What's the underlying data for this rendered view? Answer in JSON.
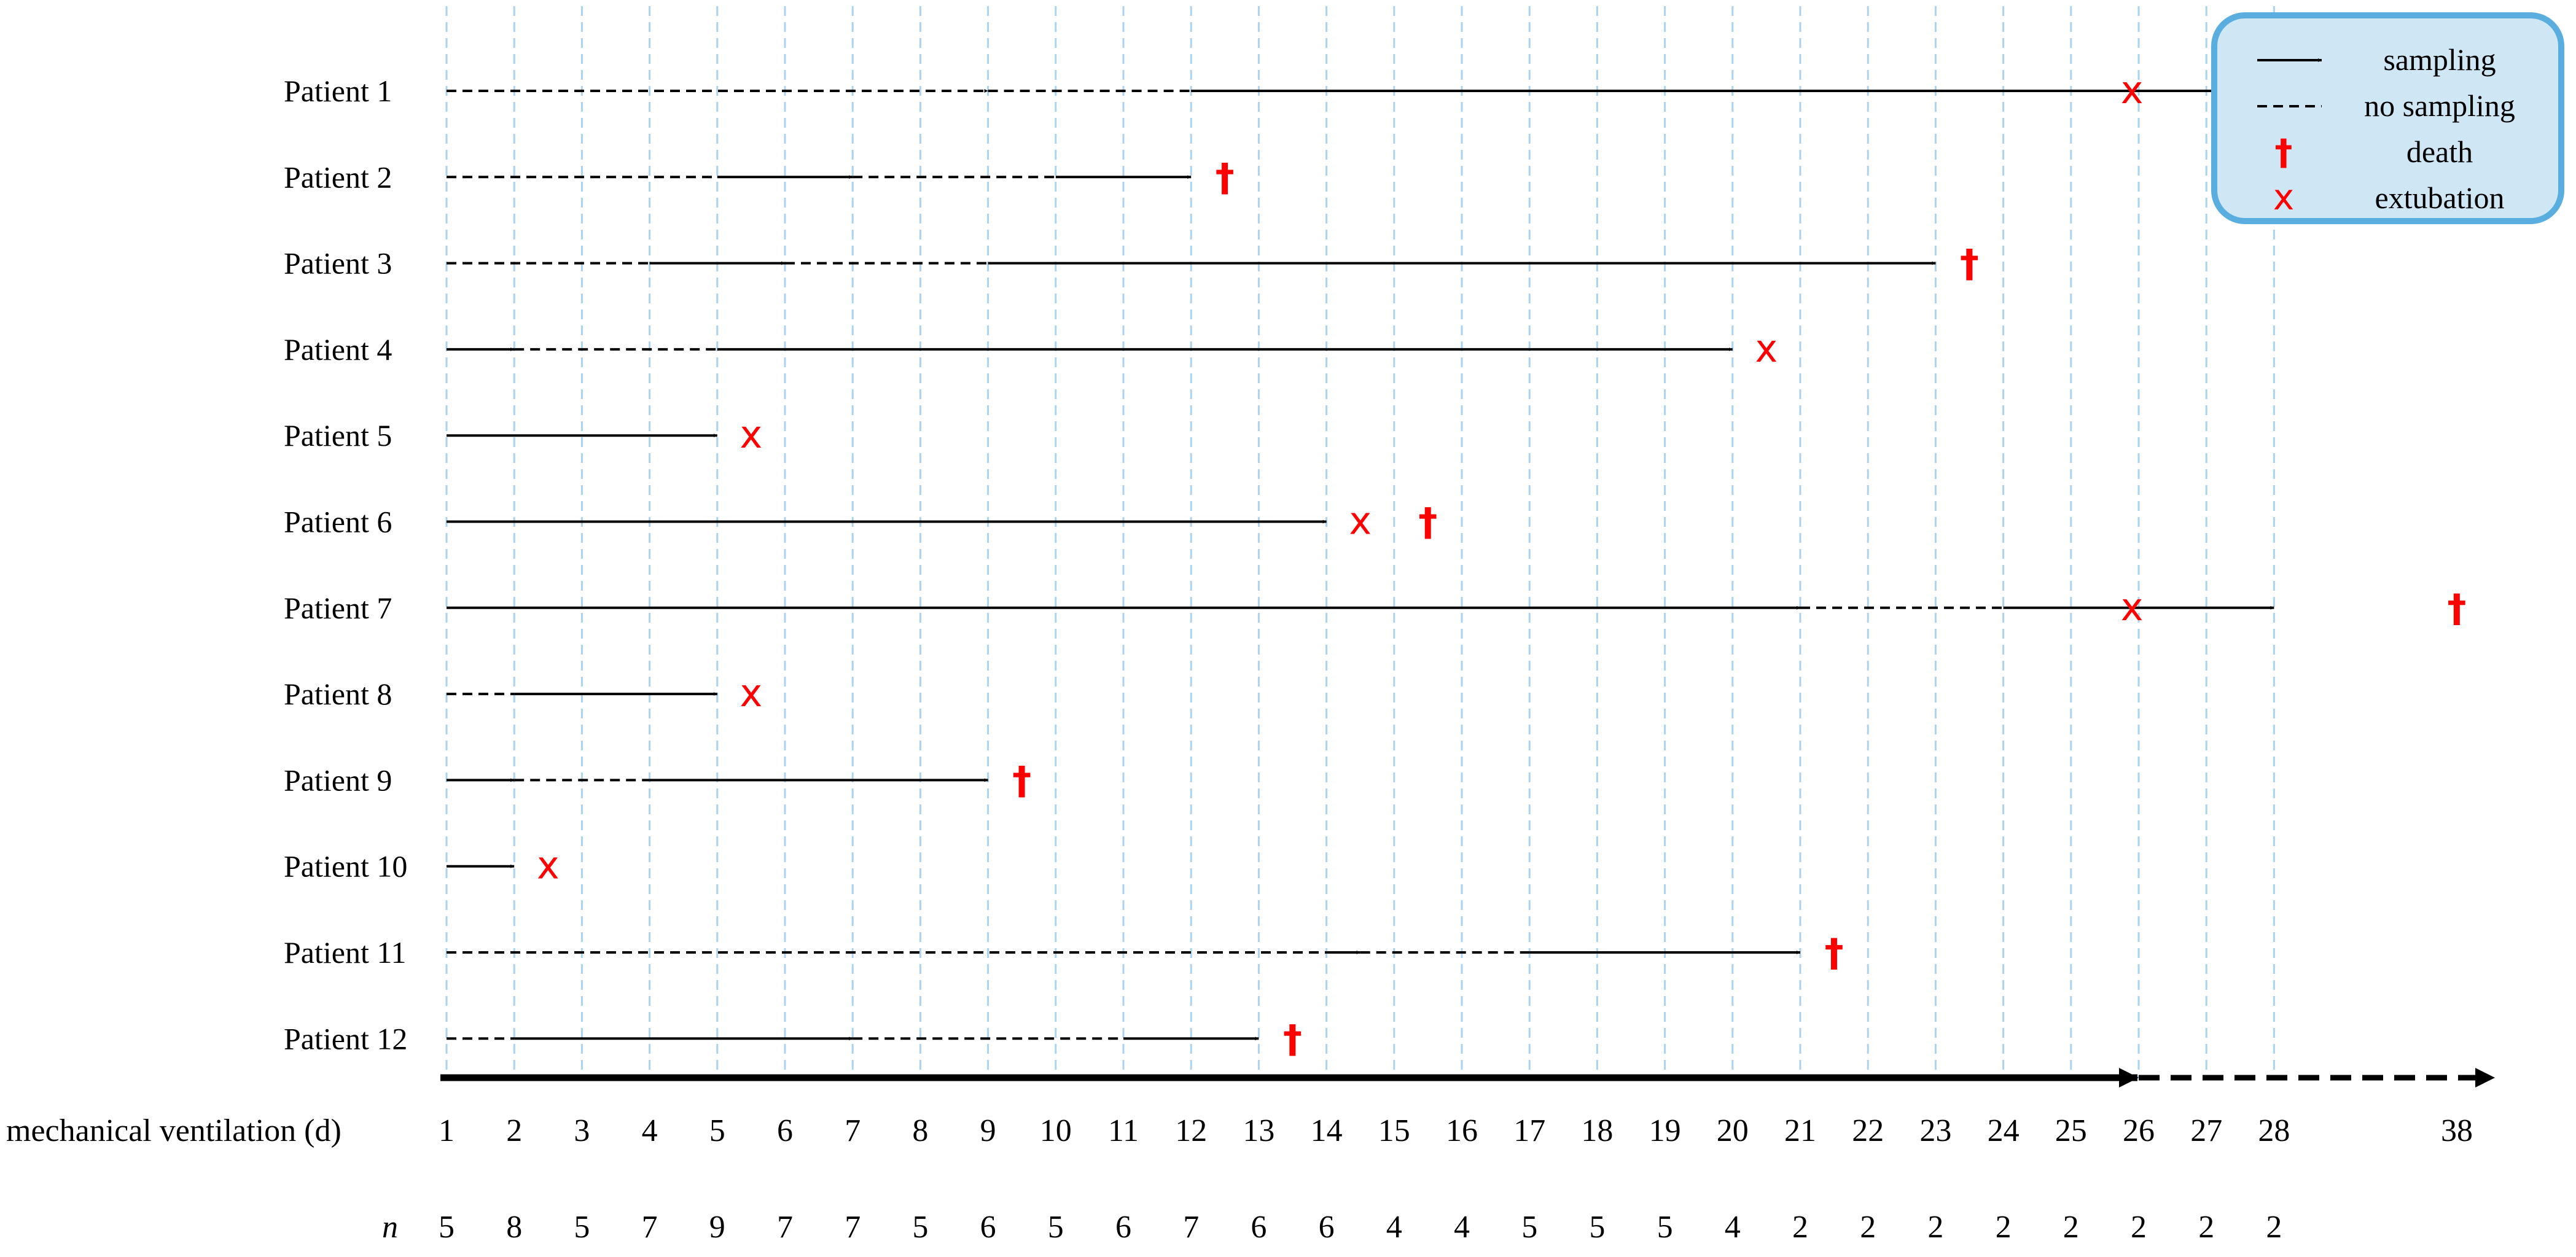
{
  "chart_data": {
    "type": "timeline",
    "x_axis_label": "mechanical ventilation (d)",
    "x_ticks": [
      1,
      2,
      3,
      4,
      5,
      6,
      7,
      8,
      9,
      10,
      11,
      12,
      13,
      14,
      15,
      16,
      17,
      18,
      19,
      20,
      21,
      22,
      23,
      24,
      25,
      26,
      27,
      28,
      38
    ],
    "n_label": "n",
    "n_values": [
      5,
      8,
      5,
      7,
      9,
      7,
      7,
      5,
      6,
      5,
      6,
      7,
      6,
      6,
      4,
      4,
      5,
      5,
      5,
      4,
      2,
      2,
      2,
      2,
      2,
      2,
      2,
      2
    ],
    "grid": "vertical dashed at each day 1-28",
    "legend": {
      "position": "top-right",
      "items": [
        {
          "symbol": "arrow",
          "label": "sampling"
        },
        {
          "symbol": "dash",
          "label": "no sampling"
        },
        {
          "symbol": "dagger",
          "label": "death"
        },
        {
          "symbol": "cross",
          "label": "extubation"
        }
      ]
    },
    "patients": [
      {
        "label": "Patient 1",
        "segments": [
          {
            "from": 1,
            "to": 9,
            "kind": "dashed",
            "arrow": true
          },
          {
            "from": 9,
            "to": 12,
            "kind": "dashed",
            "arrow": false
          },
          {
            "from": 12,
            "to": 28,
            "kind": "solid",
            "arrow": true
          }
        ],
        "events": [
          {
            "type": "extubation",
            "day": 28.4
          }
        ]
      },
      {
        "label": "Patient 2",
        "segments": [
          {
            "from": 1,
            "to": 5,
            "kind": "dashed",
            "arrow": false
          },
          {
            "from": 5,
            "to": 7,
            "kind": "solid",
            "arrow": true
          },
          {
            "from": 7,
            "to": 10,
            "kind": "dashed",
            "arrow": false
          },
          {
            "from": 10,
            "to": 12,
            "kind": "solid",
            "arrow": true
          }
        ],
        "events": [
          {
            "type": "death",
            "day": 12.5
          }
        ]
      },
      {
        "label": "Patient 3",
        "segments": [
          {
            "from": 1,
            "to": 4,
            "kind": "dashed",
            "arrow": false
          },
          {
            "from": 4,
            "to": 6,
            "kind": "solid",
            "arrow": true
          },
          {
            "from": 6,
            "to": 9,
            "kind": "dashed",
            "arrow": false
          },
          {
            "from": 9,
            "to": 23,
            "kind": "solid",
            "arrow": true
          }
        ],
        "events": [
          {
            "type": "death",
            "day": 23.5
          }
        ]
      },
      {
        "label": "Patient 4",
        "segments": [
          {
            "from": 1,
            "to": 2,
            "kind": "solid",
            "arrow": true
          },
          {
            "from": 2,
            "to": 5,
            "kind": "dashed",
            "arrow": false
          },
          {
            "from": 5,
            "to": 20,
            "kind": "solid",
            "arrow": true
          }
        ],
        "events": [
          {
            "type": "extubation",
            "day": 20.5
          }
        ]
      },
      {
        "label": "Patient 5",
        "segments": [
          {
            "from": 1,
            "to": 5,
            "kind": "solid",
            "arrow": true
          }
        ],
        "events": [
          {
            "type": "extubation",
            "day": 5.5
          }
        ]
      },
      {
        "label": "Patient 6",
        "segments": [
          {
            "from": 1,
            "to": 14,
            "kind": "solid",
            "arrow": true
          }
        ],
        "events": [
          {
            "type": "extubation",
            "day": 14.5
          },
          {
            "type": "death",
            "day": 15.5
          }
        ]
      },
      {
        "label": "Patient 7",
        "segments": [
          {
            "from": 1,
            "to": 21,
            "kind": "solid",
            "arrow": true
          },
          {
            "from": 21,
            "to": 24,
            "kind": "dashed",
            "arrow": false
          },
          {
            "from": 24,
            "to": 28,
            "kind": "solid",
            "arrow": true
          }
        ],
        "events": [
          {
            "type": "extubation",
            "day": 28.4
          },
          {
            "type": "death",
            "day": 38
          }
        ]
      },
      {
        "label": "Patient 8",
        "segments": [
          {
            "from": 1,
            "to": 2,
            "kind": "dashed",
            "arrow": false
          },
          {
            "from": 2,
            "to": 5,
            "kind": "solid",
            "arrow": true
          }
        ],
        "events": [
          {
            "type": "extubation",
            "day": 5.5
          }
        ]
      },
      {
        "label": "Patient 9",
        "segments": [
          {
            "from": 1,
            "to": 2,
            "kind": "solid",
            "arrow": true
          },
          {
            "from": 2,
            "to": 4,
            "kind": "dashed",
            "arrow": false
          },
          {
            "from": 4,
            "to": 9,
            "kind": "solid",
            "arrow": true
          }
        ],
        "events": [
          {
            "type": "death",
            "day": 9.5
          }
        ]
      },
      {
        "label": "Patient 10",
        "segments": [
          {
            "from": 1,
            "to": 2,
            "kind": "solid",
            "arrow": true
          }
        ],
        "events": [
          {
            "type": "extubation",
            "day": 2.5
          }
        ]
      },
      {
        "label": "Patient 11",
        "segments": [
          {
            "from": 1,
            "to": 14,
            "kind": "dashed",
            "arrow": false
          },
          {
            "from": 14,
            "to": 14.5,
            "kind": "solid",
            "arrow": true
          },
          {
            "from": 14.5,
            "to": 17,
            "kind": "dashed",
            "arrow": false
          },
          {
            "from": 17,
            "to": 21,
            "kind": "solid",
            "arrow": true
          }
        ],
        "events": [
          {
            "type": "death",
            "day": 21.5
          }
        ]
      },
      {
        "label": "Patient 12",
        "segments": [
          {
            "from": 1,
            "to": 2,
            "kind": "dashed",
            "arrow": false
          },
          {
            "from": 2,
            "to": 7,
            "kind": "solid",
            "arrow": true
          },
          {
            "from": 7,
            "to": 11,
            "kind": "dashed",
            "arrow": false
          },
          {
            "from": 11,
            "to": 13,
            "kind": "solid",
            "arrow": true
          }
        ],
        "events": [
          {
            "type": "death",
            "day": 13.5
          }
        ]
      }
    ],
    "colors": {
      "line": "#000000",
      "grid": "#a9d3f0",
      "event": "#ff0000",
      "legend_fill": "#cfe6f5",
      "legend_border": "#5aaedf"
    },
    "symbols": {
      "death": "†",
      "extubation": "x"
    }
  }
}
